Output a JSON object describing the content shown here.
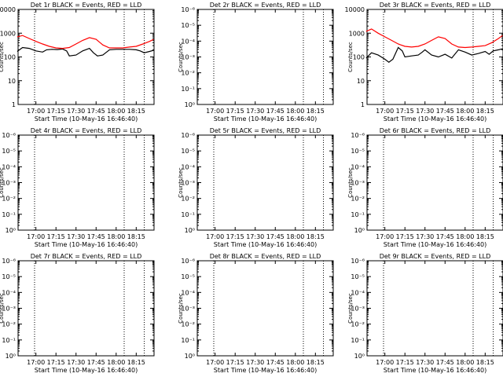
{
  "chart_data": [
    {
      "type": "line",
      "title": "Det 1r BLACK = Events, RED = LLD",
      "xlabel": "Start Time (10-May-16 16:46:40)",
      "ylabel": "Counts/sec",
      "x_ticks": [
        "17:00",
        "17:15",
        "17:30",
        "17:45",
        "18:00",
        "18:15"
      ],
      "y_scale": "log",
      "y_ticks": [
        "1",
        "10",
        "100",
        "1000",
        "10000"
      ],
      "ylim": [
        1,
        10000
      ],
      "markers": [
        "16:59",
        "18:06",
        "18:21"
      ],
      "series": [
        {
          "color": "#000000",
          "x": [
            "16:46",
            "16:50",
            "16:55",
            "17:00",
            "17:05",
            "17:08",
            "17:12",
            "17:16",
            "17:20",
            "17:23",
            "17:25",
            "17:30",
            "17:35",
            "17:40",
            "17:43",
            "17:46",
            "17:50",
            "17:55",
            "18:00",
            "18:05",
            "18:10",
            "18:15",
            "18:18",
            "18:21",
            "18:25",
            "18:28"
          ],
          "y": [
            170,
            250,
            230,
            180,
            160,
            200,
            210,
            205,
            215,
            180,
            110,
            120,
            180,
            230,
            150,
            110,
            120,
            200,
            210,
            210,
            210,
            200,
            180,
            150,
            170,
            190
          ]
        },
        {
          "color": "#ff0000",
          "x": [
            "16:46",
            "16:50",
            "16:55",
            "17:00",
            "17:05",
            "17:10",
            "17:15",
            "17:20",
            "17:25",
            "17:30",
            "17:35",
            "17:40",
            "17:45",
            "17:50",
            "17:55",
            "18:00",
            "18:05",
            "18:10",
            "18:15",
            "18:20",
            "18:25",
            "18:28"
          ],
          "y": [
            700,
            800,
            600,
            450,
            350,
            280,
            240,
            230,
            250,
            350,
            500,
            650,
            550,
            320,
            240,
            240,
            240,
            260,
            280,
            350,
            450,
            550
          ]
        }
      ]
    },
    {
      "type": "line",
      "title": "Det 2r BLACK = Events, RED = LLD",
      "xlabel": "Start Time (10-May-16 16:46:40)",
      "ylabel": "Counts/sec",
      "x_ticks": [
        "17:00",
        "17:15",
        "17:30",
        "17:45",
        "18:00",
        "18:15"
      ],
      "y_scale": "log",
      "y_ticks": [
        "10⁰",
        "10⁻¹",
        "10⁻²",
        "10⁻³",
        "10⁻⁴",
        "10⁻⁵",
        "10⁻⁶"
      ],
      "markers": [
        "16:59",
        "18:06",
        "18:21"
      ],
      "series": []
    },
    {
      "type": "line",
      "title": "Det 3r BLACK = Events, RED = LLD",
      "xlabel": "Start Time (10-May-16 16:46:40)",
      "ylabel": "Counts/sec",
      "x_ticks": [
        "17:00",
        "17:15",
        "17:30",
        "17:45",
        "18:00",
        "18:15"
      ],
      "y_scale": "log",
      "y_ticks": [
        "1",
        "10",
        "100",
        "1000",
        "10000"
      ],
      "ylim": [
        1,
        10000
      ],
      "markers": [
        "16:59",
        "18:06",
        "18:21"
      ],
      "series": [
        {
          "color": "#000000",
          "x": [
            "16:46",
            "16:50",
            "16:55",
            "17:00",
            "17:03",
            "17:06",
            "17:10",
            "17:13",
            "17:15",
            "17:20",
            "17:25",
            "17:28",
            "17:30",
            "17:35",
            "17:40",
            "17:45",
            "17:50",
            "17:55",
            "18:00",
            "18:05",
            "18:10",
            "18:15",
            "18:18",
            "18:21",
            "18:25",
            "18:28"
          ],
          "y": [
            90,
            150,
            120,
            80,
            60,
            80,
            250,
            180,
            100,
            110,
            120,
            160,
            200,
            120,
            100,
            130,
            90,
            200,
            160,
            120,
            140,
            170,
            130,
            180,
            200,
            220
          ]
        },
        {
          "color": "#ff0000",
          "x": [
            "16:46",
            "16:50",
            "16:55",
            "17:00",
            "17:05",
            "17:10",
            "17:15",
            "17:20",
            "17:25",
            "17:30",
            "17:35",
            "17:40",
            "17:45",
            "17:50",
            "17:55",
            "18:00",
            "18:05",
            "18:10",
            "18:15",
            "18:20",
            "18:25",
            "18:28"
          ],
          "y": [
            1200,
            1500,
            1000,
            700,
            500,
            350,
            280,
            260,
            280,
            350,
            500,
            700,
            600,
            350,
            260,
            250,
            260,
            280,
            300,
            400,
            600,
            800
          ]
        }
      ]
    },
    {
      "type": "line",
      "title": "Det 4r BLACK = Events, RED = LLD",
      "xlabel": "Start Time (10-May-16 16:46:40)",
      "ylabel": "Counts/sec",
      "x_ticks": [
        "17:00",
        "17:15",
        "17:30",
        "17:45",
        "18:00",
        "18:15"
      ],
      "y_scale": "log",
      "y_ticks": [
        "10⁰",
        "10⁻¹",
        "10⁻²",
        "10⁻³",
        "10⁻⁴",
        "10⁻⁵",
        "10⁻⁶"
      ],
      "markers": [
        "16:59",
        "18:06",
        "18:21"
      ],
      "series": []
    },
    {
      "type": "line",
      "title": "Det 5r BLACK = Events, RED = LLD",
      "xlabel": "Start Time (10-May-16 16:46:40)",
      "ylabel": "Counts/sec",
      "x_ticks": [
        "17:00",
        "17:15",
        "17:30",
        "17:45",
        "18:00",
        "18:15"
      ],
      "y_scale": "log",
      "y_ticks": [
        "10⁰",
        "10⁻¹",
        "10⁻²",
        "10⁻³",
        "10⁻⁴",
        "10⁻⁵",
        "10⁻⁶"
      ],
      "markers": [
        "16:59",
        "18:06",
        "18:21"
      ],
      "series": []
    },
    {
      "type": "line",
      "title": "Det 6r BLACK = Events, RED = LLD",
      "xlabel": "Start Time (10-May-16 16:46:40)",
      "ylabel": "Counts/sec",
      "x_ticks": [
        "17:00",
        "17:15",
        "17:30",
        "17:45",
        "18:00",
        "18:15"
      ],
      "y_scale": "log",
      "y_ticks": [
        "10⁰",
        "10⁻¹",
        "10⁻²",
        "10⁻³",
        "10⁻⁴",
        "10⁻⁵",
        "10⁻⁶"
      ],
      "markers": [
        "16:59",
        "18:06",
        "18:21"
      ],
      "series": []
    },
    {
      "type": "line",
      "title": "Det 7r BLACK = Events, RED = LLD",
      "xlabel": "Start Time (10-May-16 16:46:40)",
      "ylabel": "Counts/sec",
      "x_ticks": [
        "17:00",
        "17:15",
        "17:30",
        "17:45",
        "18:00",
        "18:15"
      ],
      "y_scale": "log",
      "y_ticks": [
        "10⁰",
        "10⁻¹",
        "10⁻²",
        "10⁻³",
        "10⁻⁴",
        "10⁻⁵",
        "10⁻⁶"
      ],
      "markers": [
        "16:59",
        "18:06",
        "18:21"
      ],
      "series": []
    },
    {
      "type": "line",
      "title": "Det 8r BLACK = Events, RED = LLD",
      "xlabel": "Start Time (10-May-16 16:46:40)",
      "ylabel": "Counts/sec",
      "x_ticks": [
        "17:00",
        "17:15",
        "17:30",
        "17:45",
        "18:00",
        "18:15"
      ],
      "y_scale": "log",
      "y_ticks": [
        "10⁰",
        "10⁻¹",
        "10⁻²",
        "10⁻³",
        "10⁻⁴",
        "10⁻⁵",
        "10⁻⁶"
      ],
      "markers": [
        "16:59",
        "18:06",
        "18:21"
      ],
      "series": []
    },
    {
      "type": "line",
      "title": "Det 9r BLACK = Events, RED = LLD",
      "xlabel": "Start Time (10-May-16 16:46:40)",
      "ylabel": "Counts/sec",
      "x_ticks": [
        "17:00",
        "17:15",
        "17:30",
        "17:45",
        "18:00",
        "18:15"
      ],
      "y_scale": "log",
      "y_ticks": [
        "10⁰",
        "10⁻¹",
        "10⁻²",
        "10⁻³",
        "10⁻⁴",
        "10⁻⁵",
        "10⁻⁶"
      ],
      "markers": [
        "16:59",
        "18:06",
        "18:21"
      ],
      "series": []
    }
  ]
}
